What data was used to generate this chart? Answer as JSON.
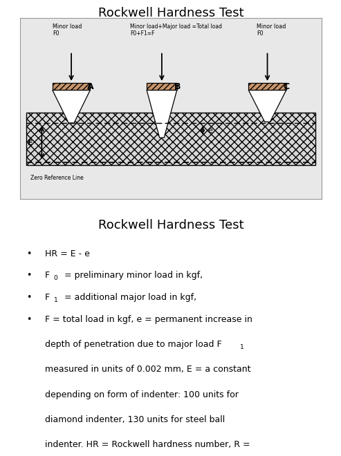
{
  "title1": "Rockwell Hardness Test",
  "title2": "Rockwell Hardness Test",
  "diagram_bg": "#e8e8e8",
  "page_bg": "#ffffff",
  "indenter_top_fill": "#c8956b",
  "material_fill": "#d8d8d8",
  "label_A": "A",
  "label_B": "B",
  "label_C": "C",
  "label_E": "E",
  "label_e": "e",
  "minor_load_text_left": "Minor load\nF0",
  "minor_load_text_right": "Minor load\nF0",
  "major_load_text": "Minor load+Major load =Total load\nF0+F1=F",
  "zero_ref_text": "Zero Reference Line",
  "text_color": "#000000",
  "border_color": "#999999",
  "bullet1": "HR = E - e",
  "bullet2_pre": "F",
  "bullet2_sub": "0",
  "bullet2_post": " = preliminary minor load in kgf,",
  "bullet3_pre": "F",
  "bullet3_sub": "1",
  "bullet3_post": " = additional major load in kgf,",
  "bullet4": "F = total load in kgf, e = permanent increase in\ndepth of penetration due to major load F",
  "bullet4_sub": "1",
  "bullet4_rest": "\nmeasured in units of 0.002 mm, E = a constant\ndepending on form of indenter: 100 units for\ndiamond indenter, 130 units for steel ball\nindenter. HR = Rockwell hardness number, R ="
}
